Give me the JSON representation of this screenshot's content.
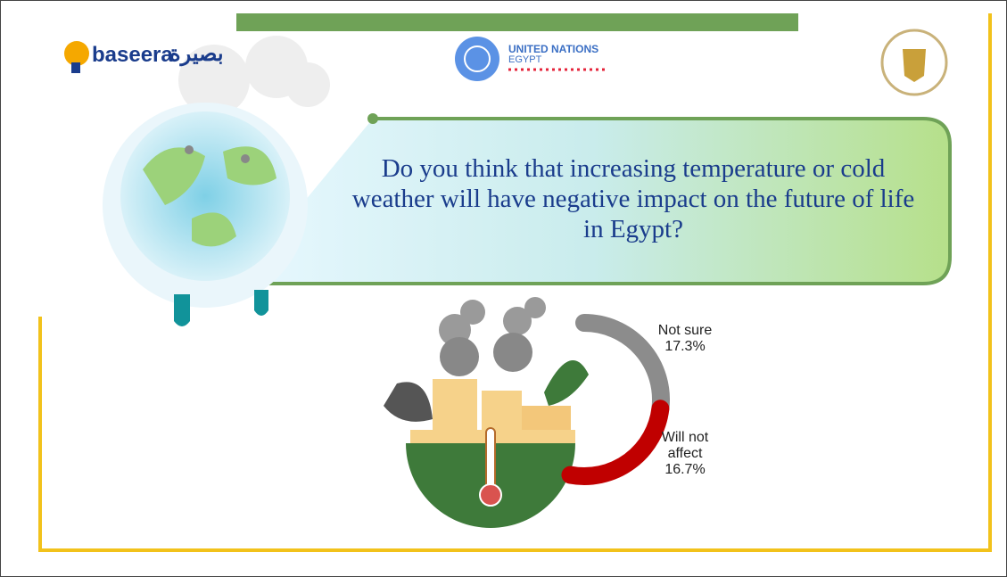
{
  "header": {
    "brand_latin": "baseera",
    "brand_arabic": "بصيرة",
    "un_title": "UNITED NATIONS",
    "un_subtitle": "EGYPT"
  },
  "chart_data": {
    "type": "donut",
    "title": "Do you think that increasing temperature or cold weather will have negative impact on the future of life in Egypt?",
    "categories": [
      "Not sure",
      "Will not affect"
    ],
    "values": [
      17.3,
      16.7
    ],
    "value_labels": [
      "17.3%",
      "16.7%"
    ],
    "colors": [
      "#8c8c8c",
      "#c00000"
    ]
  }
}
